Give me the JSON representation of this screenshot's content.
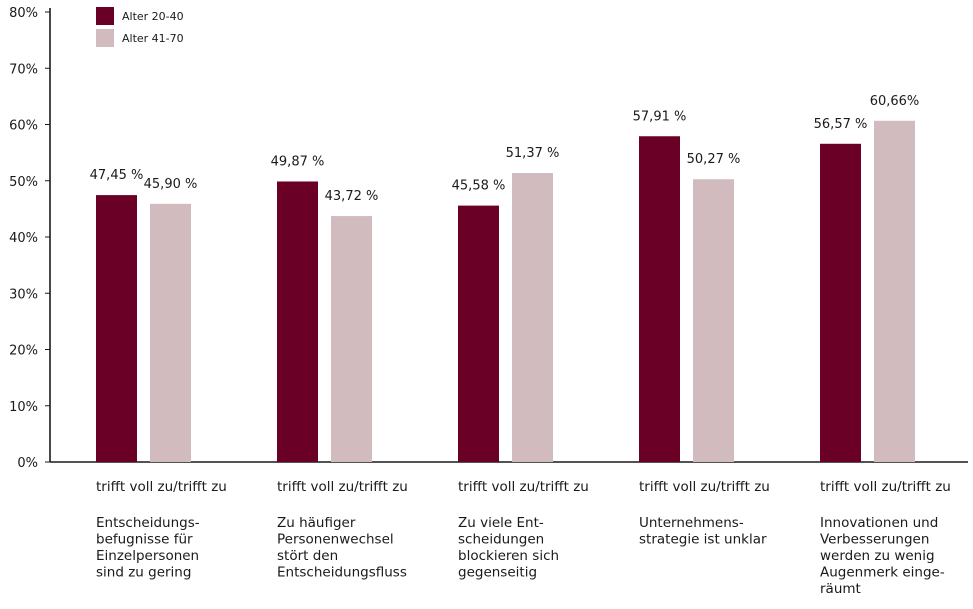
{
  "chart_data": {
    "type": "bar",
    "categories": [
      {
        "answer": "trifft voll zu/trifft zu",
        "statement_lines": [
          "Entscheidungs-",
          "befugnisse für",
          "Einzelpersonen",
          "sind zu gering"
        ]
      },
      {
        "answer": "trifft voll zu/trifft zu",
        "statement_lines": [
          "Zu häufiger",
          "Personenwechsel",
          "stört den",
          "Entscheidungsfluss"
        ]
      },
      {
        "answer": "trifft voll zu/trifft zu",
        "statement_lines": [
          "Zu viele Ent-",
          "scheidungen",
          "blockieren sich",
          "gegenseitig"
        ]
      },
      {
        "answer": "trifft voll zu/trifft zu",
        "statement_lines": [
          "Unternehmens-",
          "strategie ist unklar"
        ]
      },
      {
        "answer": "trifft voll zu/trifft zu",
        "statement_lines": [
          "Innovationen und",
          "Verbesserungen",
          "werden zu wenig",
          "Augenmerk einge-",
          "räumt"
        ]
      }
    ],
    "series": [
      {
        "name": "Alter 20-40",
        "color": "#6b0027",
        "values": [
          47.45,
          49.87,
          45.58,
          57.91,
          56.57
        ],
        "labels": [
          "47,45 %",
          "49,87 %",
          "45,58 %",
          "57,91 %",
          "56,57 %"
        ]
      },
      {
        "name": "Alter 41-70",
        "color": "#d1bbbf",
        "values": [
          45.9,
          43.72,
          51.37,
          50.27,
          60.66
        ],
        "labels": [
          "45,90 %",
          "43,72 %",
          "51,37 %",
          "50,27 %",
          "60,66%"
        ]
      }
    ],
    "ylim": [
      0,
      80
    ],
    "yticks": [
      {
        "value": 0,
        "label": "0%"
      },
      {
        "value": 10,
        "label": "10%"
      },
      {
        "value": 20,
        "label": "20%"
      },
      {
        "value": 30,
        "label": "30%"
      },
      {
        "value": 40,
        "label": "40%"
      },
      {
        "value": 50,
        "label": "50%"
      },
      {
        "value": 60,
        "label": "60%"
      },
      {
        "value": 70,
        "label": "70%"
      },
      {
        "value": 80,
        "label": "80%"
      }
    ],
    "legend_position": "top-left",
    "grid": false
  }
}
